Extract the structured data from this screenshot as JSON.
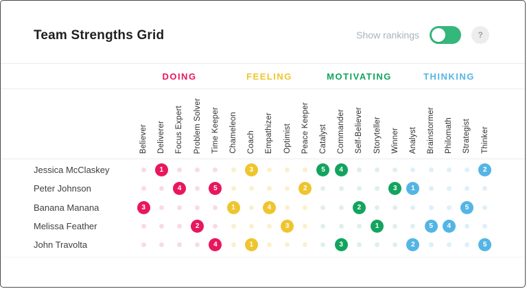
{
  "header": {
    "title": "Team Strengths Grid",
    "toggle_label": "Show rankings",
    "toggle_on": true,
    "help_label": "?"
  },
  "colors": {
    "toggle_green": "#35b77b",
    "divider": "#ebebeb"
  },
  "categories": [
    {
      "label": "DOING",
      "color": "#e8175d",
      "faded": "#f8dbe5"
    },
    {
      "label": "FEELING",
      "color": "#eec52d",
      "faded": "#faf0cf"
    },
    {
      "label": "MOTIVATING",
      "color": "#12a45e",
      "faded": "#e0f0e8"
    },
    {
      "label": "THINKING",
      "color": "#54b5e5",
      "faded": "#def0f9"
    }
  ],
  "columns": [
    {
      "label": "Believer",
      "category": 0
    },
    {
      "label": "Deliverer",
      "category": 0
    },
    {
      "label": "Focus Expert",
      "category": 0
    },
    {
      "label": "Problem Solver",
      "category": 0
    },
    {
      "label": "Time Keeper",
      "category": 0
    },
    {
      "label": "Chameleon",
      "category": 1
    },
    {
      "label": "Coach",
      "category": 1
    },
    {
      "label": "Empathizer",
      "category": 1
    },
    {
      "label": "Optimist",
      "category": 1
    },
    {
      "label": "Peace Keeper",
      "category": 1
    },
    {
      "label": "Catalyst",
      "category": 2
    },
    {
      "label": "Commander",
      "category": 2
    },
    {
      "label": "Self-Believer",
      "category": 2
    },
    {
      "label": "Storyteller",
      "category": 2
    },
    {
      "label": "Winner",
      "category": 2
    },
    {
      "label": "Analyst",
      "category": 3
    },
    {
      "label": "Brainstormer",
      "category": 3
    },
    {
      "label": "Philomath",
      "category": 3
    },
    {
      "label": "Strategist",
      "category": 3
    },
    {
      "label": "Thinker",
      "category": 3
    }
  ],
  "people": [
    {
      "name": "Jessica McClaskey",
      "rankings": {
        "Deliverer": 1,
        "Coach": 3,
        "Catalyst": 5,
        "Commander": 4,
        "Thinker": 2
      }
    },
    {
      "name": "Peter Johnson",
      "rankings": {
        "Focus Expert": 4,
        "Time Keeper": 5,
        "Peace Keeper": 2,
        "Winner": 3,
        "Analyst": 1
      }
    },
    {
      "name": "Banana Manana",
      "rankings": {
        "Believer": 3,
        "Chameleon": 1,
        "Empathizer": 4,
        "Self-Believer": 2,
        "Strategist": 5
      }
    },
    {
      "name": "Melissa Feather",
      "rankings": {
        "Problem Solver": 2,
        "Optimist": 3,
        "Storyteller": 1,
        "Brainstormer": 5,
        "Philomath": 4
      }
    },
    {
      "name": "John Travolta",
      "rankings": {
        "Time Keeper": 4,
        "Coach": 1,
        "Commander": 3,
        "Analyst": 2,
        "Thinker": 5
      }
    }
  ]
}
